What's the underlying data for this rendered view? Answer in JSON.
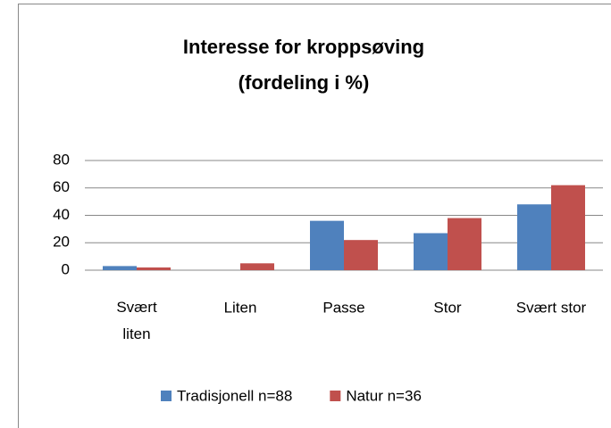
{
  "chart_data": {
    "type": "bar",
    "title": "Interesse for kroppsøving",
    "subtitle": "(fordeling i %)",
    "categories": [
      "Svært liten",
      "Liten",
      "Passe",
      "Stor",
      "Svært stor"
    ],
    "series": [
      {
        "name": "Tradisjonell n=88",
        "color": "#4f81bd",
        "values": [
          3,
          0,
          36,
          27,
          48
        ]
      },
      {
        "name": "Natur n=36",
        "color": "#c0504d",
        "values": [
          2,
          5,
          22,
          38,
          62
        ]
      }
    ],
    "ylim": [
      0,
      80
    ],
    "yticks": [
      0,
      20,
      40,
      60,
      80
    ],
    "grid": true,
    "legend": "bottom"
  }
}
